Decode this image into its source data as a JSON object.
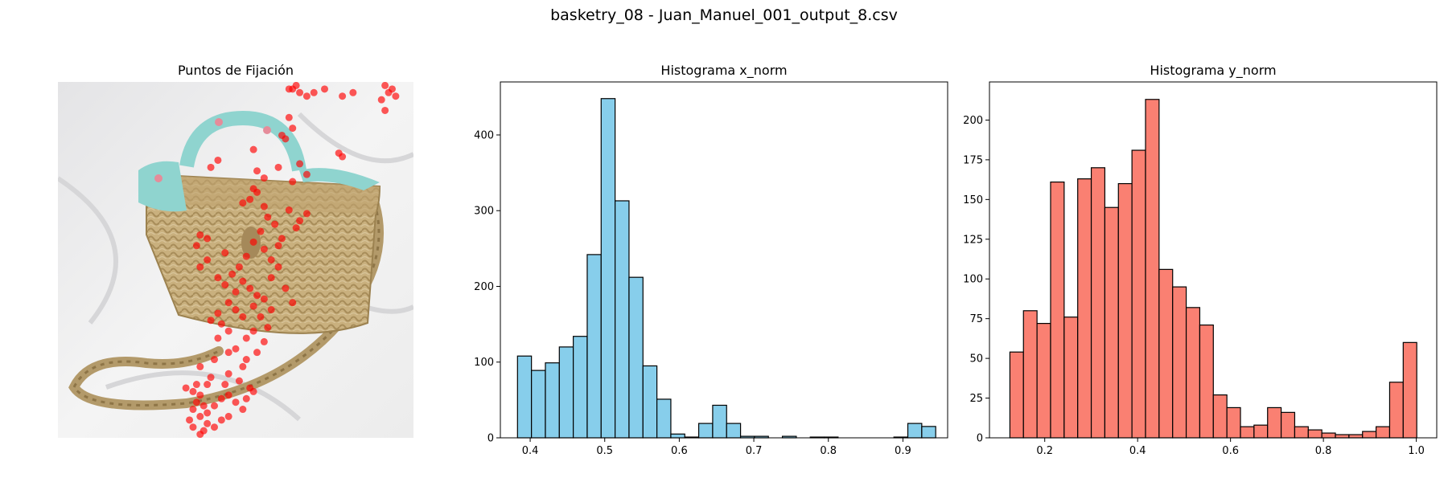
{
  "suptitle": "basketry_08 - Juan_Manuel_001_output_8.csv",
  "panels": {
    "image": {
      "title": "Puntos de Fijación"
    },
    "hist_x": {
      "title": "Histograma x_norm"
    },
    "hist_y": {
      "title": "Histograma y_norm"
    }
  },
  "colors": {
    "x_bars": "#87ceeb",
    "y_bars": "#fa8072",
    "edge": "#000000",
    "fixation": "#ff0000"
  },
  "chart_data": [
    {
      "type": "scatter",
      "title": "Puntos de Fijación",
      "note_image": "photo of a woven basket handbag with teal bow scarf on white cloth",
      "x_range": [
        0,
        1
      ],
      "y_range": [
        0,
        1
      ],
      "points": [
        [
          0.67,
          0.01
        ],
        [
          0.66,
          0.02
        ],
        [
          0.68,
          0.03
        ],
        [
          0.65,
          0.02
        ],
        [
          0.7,
          0.04
        ],
        [
          0.72,
          0.03
        ],
        [
          0.75,
          0.02
        ],
        [
          0.8,
          0.04
        ],
        [
          0.83,
          0.03
        ],
        [
          0.92,
          0.01
        ],
        [
          0.93,
          0.03
        ],
        [
          0.94,
          0.02
        ],
        [
          0.91,
          0.05
        ],
        [
          0.95,
          0.04
        ],
        [
          0.92,
          0.08
        ],
        [
          0.65,
          0.1
        ],
        [
          0.66,
          0.13
        ],
        [
          0.63,
          0.15
        ],
        [
          0.64,
          0.16
        ],
        [
          0.55,
          0.19
        ],
        [
          0.79,
          0.2
        ],
        [
          0.8,
          0.21
        ],
        [
          0.45,
          0.22
        ],
        [
          0.43,
          0.24
        ],
        [
          0.56,
          0.25
        ],
        [
          0.58,
          0.27
        ],
        [
          0.62,
          0.24
        ],
        [
          0.68,
          0.23
        ],
        [
          0.7,
          0.26
        ],
        [
          0.66,
          0.28
        ],
        [
          0.55,
          0.3
        ],
        [
          0.56,
          0.31
        ],
        [
          0.54,
          0.33
        ],
        [
          0.58,
          0.35
        ],
        [
          0.52,
          0.34
        ],
        [
          0.59,
          0.38
        ],
        [
          0.61,
          0.4
        ],
        [
          0.65,
          0.36
        ],
        [
          0.68,
          0.39
        ],
        [
          0.7,
          0.37
        ],
        [
          0.57,
          0.42
        ],
        [
          0.55,
          0.45
        ],
        [
          0.58,
          0.47
        ],
        [
          0.53,
          0.49
        ],
        [
          0.6,
          0.5
        ],
        [
          0.63,
          0.44
        ],
        [
          0.67,
          0.41
        ],
        [
          0.62,
          0.46
        ],
        [
          0.4,
          0.43
        ],
        [
          0.42,
          0.44
        ],
        [
          0.39,
          0.46
        ],
        [
          0.42,
          0.5
        ],
        [
          0.4,
          0.52
        ],
        [
          0.45,
          0.55
        ],
        [
          0.47,
          0.57
        ],
        [
          0.5,
          0.59
        ],
        [
          0.52,
          0.56
        ],
        [
          0.54,
          0.58
        ],
        [
          0.56,
          0.6
        ],
        [
          0.48,
          0.62
        ],
        [
          0.5,
          0.64
        ],
        [
          0.52,
          0.66
        ],
        [
          0.55,
          0.63
        ],
        [
          0.46,
          0.68
        ],
        [
          0.48,
          0.7
        ],
        [
          0.53,
          0.72
        ],
        [
          0.55,
          0.7
        ],
        [
          0.5,
          0.75
        ],
        [
          0.45,
          0.72
        ],
        [
          0.48,
          0.76
        ],
        [
          0.53,
          0.78
        ],
        [
          0.56,
          0.76
        ],
        [
          0.58,
          0.73
        ],
        [
          0.52,
          0.8
        ],
        [
          0.48,
          0.82
        ],
        [
          0.44,
          0.78
        ],
        [
          0.51,
          0.84
        ],
        [
          0.54,
          0.86
        ],
        [
          0.47,
          0.85
        ],
        [
          0.43,
          0.83
        ],
        [
          0.4,
          0.8
        ],
        [
          0.42,
          0.85
        ],
        [
          0.38,
          0.87
        ],
        [
          0.4,
          0.88
        ],
        [
          0.39,
          0.9
        ],
        [
          0.41,
          0.91
        ],
        [
          0.38,
          0.92
        ],
        [
          0.4,
          0.94
        ],
        [
          0.42,
          0.93
        ],
        [
          0.44,
          0.91
        ],
        [
          0.46,
          0.89
        ],
        [
          0.48,
          0.88
        ],
        [
          0.5,
          0.9
        ],
        [
          0.52,
          0.92
        ],
        [
          0.53,
          0.89
        ],
        [
          0.55,
          0.87
        ],
        [
          0.38,
          0.97
        ],
        [
          0.4,
          0.99
        ],
        [
          0.42,
          0.96
        ],
        [
          0.41,
          0.98
        ],
        [
          0.44,
          0.97
        ],
        [
          0.46,
          0.95
        ],
        [
          0.48,
          0.94
        ],
        [
          0.37,
          0.95
        ],
        [
          0.39,
          0.85
        ],
        [
          0.36,
          0.86
        ],
        [
          0.6,
          0.55
        ],
        [
          0.62,
          0.52
        ],
        [
          0.64,
          0.58
        ],
        [
          0.66,
          0.62
        ],
        [
          0.45,
          0.65
        ],
        [
          0.43,
          0.67
        ],
        [
          0.57,
          0.66
        ],
        [
          0.59,
          0.69
        ],
        [
          0.51,
          0.52
        ],
        [
          0.49,
          0.54
        ],
        [
          0.47,
          0.48
        ],
        [
          0.58,
          0.61
        ],
        [
          0.6,
          0.64
        ]
      ]
    },
    {
      "type": "bar",
      "title": "Histograma x_norm",
      "bin_start": 0.383,
      "bin_width": 0.0187,
      "values": [
        108,
        89,
        99,
        120,
        134,
        242,
        448,
        313,
        212,
        95,
        51,
        5,
        1,
        19,
        43,
        19,
        2,
        2,
        0,
        2,
        0,
        1,
        1,
        0,
        0,
        0,
        0,
        1,
        19,
        15
      ],
      "xlim": [
        0.36,
        0.96
      ],
      "ylim": [
        0,
        470
      ],
      "xticks": [
        0.4,
        0.5,
        0.6,
        0.7,
        0.8,
        0.9
      ],
      "yticks": [
        0,
        100,
        200,
        300,
        400
      ]
    },
    {
      "type": "bar",
      "title": "Histograma y_norm",
      "bin_start": 0.125,
      "bin_width": 0.0292,
      "values": [
        54,
        80,
        72,
        161,
        76,
        163,
        170,
        145,
        160,
        181,
        213,
        106,
        95,
        82,
        71,
        27,
        19,
        7,
        8,
        19,
        16,
        7,
        5,
        3,
        2,
        2,
        4,
        7,
        35,
        60
      ],
      "xlim": [
        0.081,
        1.044
      ],
      "ylim": [
        0,
        224
      ],
      "xticks": [
        0.2,
        0.4,
        0.6,
        0.8,
        1.0
      ],
      "yticks": [
        0,
        25,
        50,
        75,
        100,
        125,
        150,
        175,
        200
      ]
    }
  ]
}
